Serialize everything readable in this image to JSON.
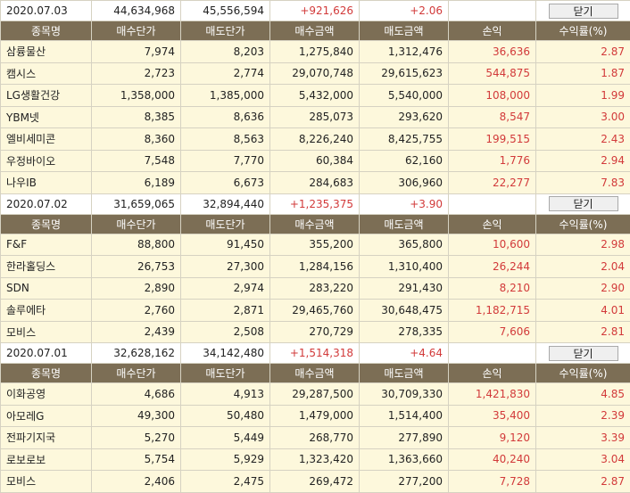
{
  "headers": [
    "종목명",
    "매수단가",
    "매도단가",
    "매수금액",
    "매도금액",
    "손익",
    "수익률(%)"
  ],
  "close_label": "닫기",
  "groups": [
    {
      "date": "2020.07.03",
      "total_buy": "44,634,968",
      "total_sell": "45,556,594",
      "total_profit": "+921,626",
      "total_rate": "+2.06",
      "rows": [
        [
          "삼륭물산",
          "7,974",
          "8,203",
          "1,275,840",
          "1,312,476",
          "36,636",
          "2.87"
        ],
        [
          "캠시스",
          "2,723",
          "2,774",
          "29,070,748",
          "29,615,623",
          "544,875",
          "1.87"
        ],
        [
          "LG생활건강",
          "1,358,000",
          "1,385,000",
          "5,432,000",
          "5,540,000",
          "108,000",
          "1.99"
        ],
        [
          "YBM넷",
          "8,385",
          "8,636",
          "285,073",
          "293,620",
          "8,547",
          "3.00"
        ],
        [
          "엘비세미콘",
          "8,360",
          "8,563",
          "8,226,240",
          "8,425,755",
          "199,515",
          "2.43"
        ],
        [
          "우정바이오",
          "7,548",
          "7,770",
          "60,384",
          "62,160",
          "1,776",
          "2.94"
        ],
        [
          "나우IB",
          "6,189",
          "6,673",
          "284,683",
          "306,960",
          "22,277",
          "7.83"
        ]
      ]
    },
    {
      "date": "2020.07.02",
      "total_buy": "31,659,065",
      "total_sell": "32,894,440",
      "total_profit": "+1,235,375",
      "total_rate": "+3.90",
      "rows": [
        [
          "F&F",
          "88,800",
          "91,450",
          "355,200",
          "365,800",
          "10,600",
          "2.98"
        ],
        [
          "한라홀딩스",
          "26,753",
          "27,300",
          "1,284,156",
          "1,310,400",
          "26,244",
          "2.04"
        ],
        [
          "SDN",
          "2,890",
          "2,974",
          "283,220",
          "291,430",
          "8,210",
          "2.90"
        ],
        [
          "솔루에타",
          "2,760",
          "2,871",
          "29,465,760",
          "30,648,475",
          "1,182,715",
          "4.01"
        ],
        [
          "모비스",
          "2,439",
          "2,508",
          "270,729",
          "278,335",
          "7,606",
          "2.81"
        ]
      ]
    },
    {
      "date": "2020.07.01",
      "total_buy": "32,628,162",
      "total_sell": "34,142,480",
      "total_profit": "+1,514,318",
      "total_rate": "+4.64",
      "rows": [
        [
          "이화공영",
          "4,686",
          "4,913",
          "29,287,500",
          "30,709,330",
          "1,421,830",
          "4.85"
        ],
        [
          "아모레G",
          "49,300",
          "50,480",
          "1,479,000",
          "1,514,400",
          "35,400",
          "2.39"
        ],
        [
          "전파기지국",
          "5,270",
          "5,449",
          "268,770",
          "277,890",
          "9,120",
          "3.39"
        ],
        [
          "로보로보",
          "5,754",
          "5,929",
          "1,323,420",
          "1,363,660",
          "40,240",
          "3.04"
        ],
        [
          "모비스",
          "2,406",
          "2,475",
          "269,472",
          "277,200",
          "7,728",
          "2.87"
        ]
      ]
    }
  ],
  "colors": {
    "header_bg": "#7c6e55",
    "row_bg": "#fdf8dc",
    "profit_red": "#d23a3a"
  }
}
